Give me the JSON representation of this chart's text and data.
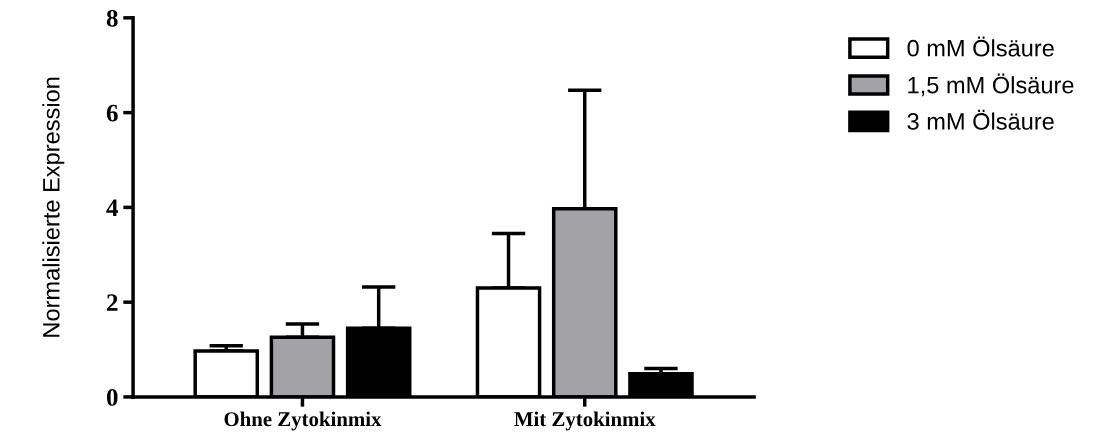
{
  "chart_data": {
    "type": "bar",
    "ylabel": "Normalisierte Expression",
    "categories": [
      "Ohne Zytokinmix",
      "Mit Zytokinmix"
    ],
    "series": [
      {
        "name": "0 mM Ölsäure",
        "color": "#ffffff",
        "values": [
          0.97,
          2.3
        ],
        "errors": [
          [
            0.97,
            1.08
          ],
          [
            2.3,
            3.45
          ]
        ]
      },
      {
        "name": "1,5 mM Ölsäure",
        "color": "#a3a3a7",
        "values": [
          1.26,
          3.97
        ],
        "errors": [
          [
            1.26,
            1.54
          ],
          [
            3.97,
            6.47
          ]
        ]
      },
      {
        "name": "3 mM Ölsäure",
        "color": "#000000",
        "values": [
          1.45,
          0.49
        ],
        "errors": [
          [
            1.45,
            2.32
          ],
          [
            0.49,
            0.6
          ]
        ]
      }
    ],
    "ylim": [
      0,
      8
    ],
    "yticks": [
      0,
      2,
      4,
      6,
      8
    ],
    "grid": false,
    "legend": "top right"
  }
}
